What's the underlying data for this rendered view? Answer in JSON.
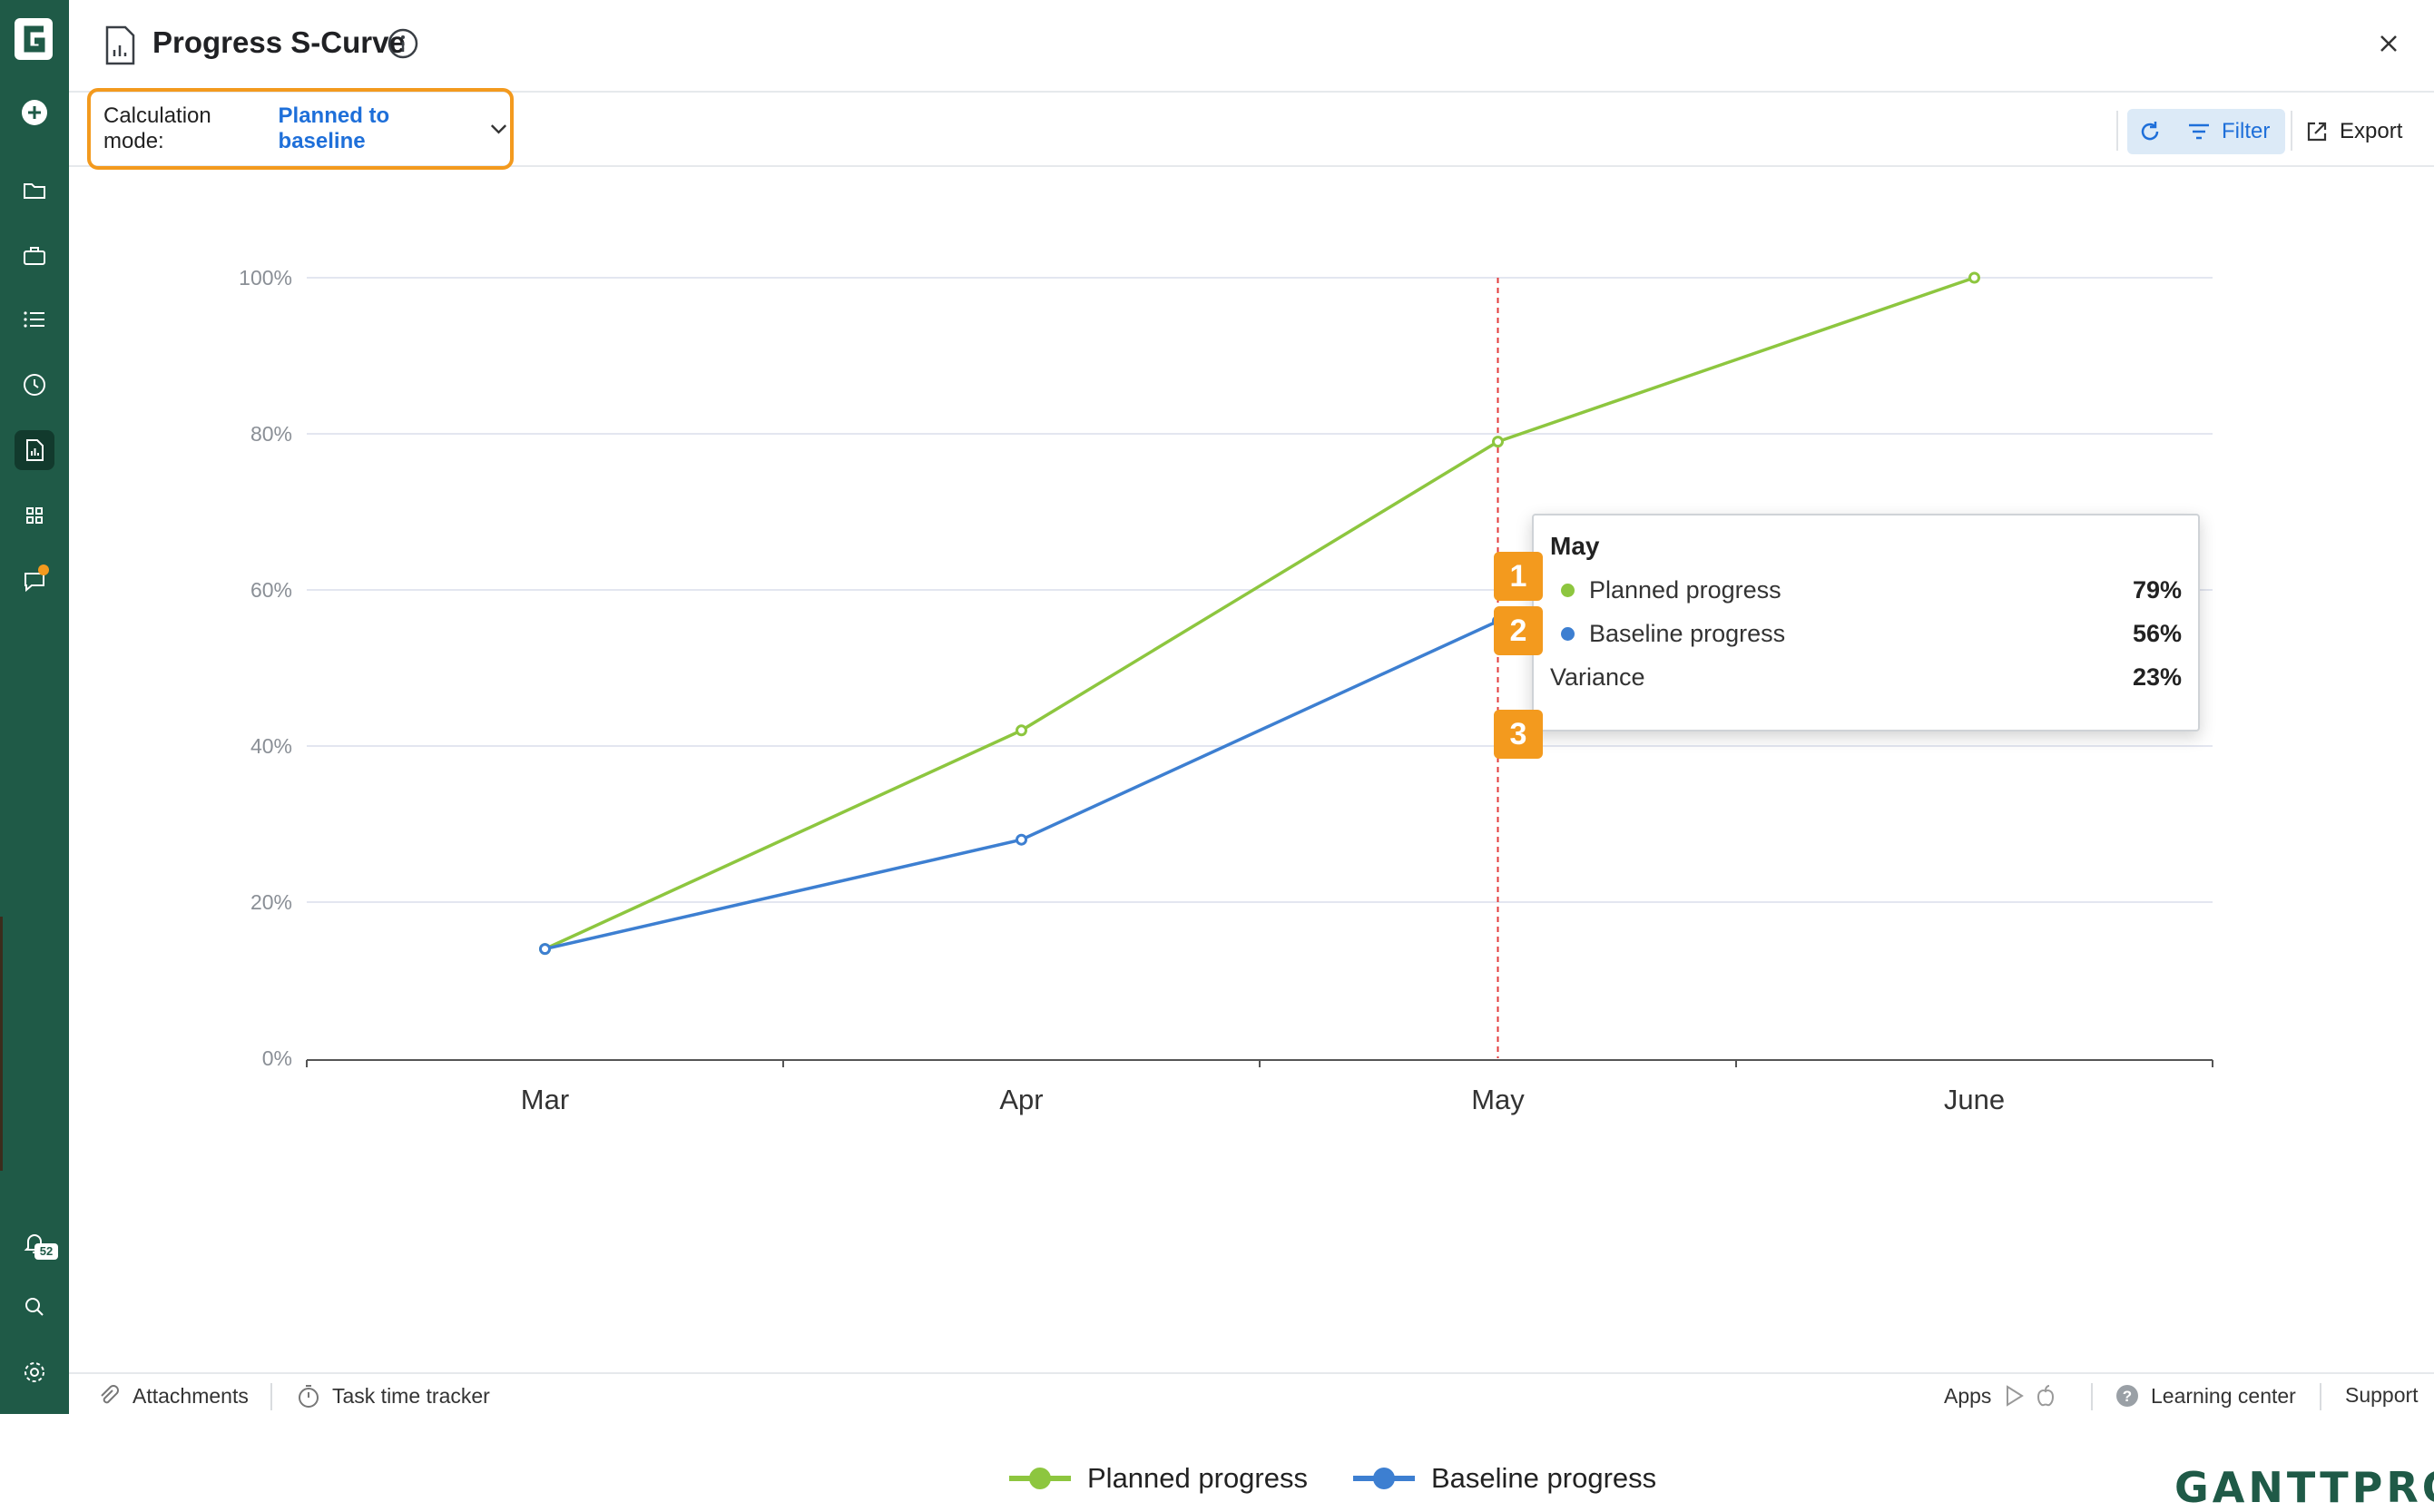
{
  "header": {
    "title": "Progress S-Curve"
  },
  "toolbar": {
    "calc_label": "Calculation mode:",
    "calc_value": "Planned to baseline",
    "filter_label": "Filter",
    "export_label": "Export"
  },
  "sidebar": {
    "notification_count": "52",
    "icons": [
      "plus-circle-icon",
      "folder-icon",
      "briefcase-icon",
      "list-icon",
      "clock-icon",
      "report-icon",
      "grid-icon",
      "chat-icon",
      "bell-icon",
      "search-icon",
      "gear-icon"
    ]
  },
  "tooltip": {
    "title": "May",
    "rows": [
      {
        "label": "Planned progress",
        "value": "79%",
        "color": "#8dc63f"
      },
      {
        "label": "Baseline progress",
        "value": "56%",
        "color": "#3d7fd1"
      },
      {
        "label": "Variance",
        "value": "23%"
      }
    ],
    "markers": [
      "1",
      "2",
      "3"
    ]
  },
  "chart_data": {
    "type": "line",
    "x": [
      "Mar",
      "Apr",
      "May",
      "June"
    ],
    "ylim": [
      0,
      100
    ],
    "y_ticks": [
      "0%",
      "20%",
      "40%",
      "60%",
      "80%",
      "100%"
    ],
    "grid": true,
    "highlight_x": "May",
    "legend_position": "bottom",
    "series": [
      {
        "name": "Planned progress",
        "color": "#8dc63f",
        "values": [
          14,
          42,
          79,
          100
        ]
      },
      {
        "name": "Baseline progress",
        "color": "#3d7fd1",
        "values": [
          14,
          28,
          56,
          null
        ]
      }
    ]
  },
  "brand": "GANTTPRO",
  "footer": {
    "attachments": "Attachments",
    "time_tracker": "Task time tracker",
    "apps": "Apps",
    "learning_center": "Learning center",
    "support": "Support"
  }
}
